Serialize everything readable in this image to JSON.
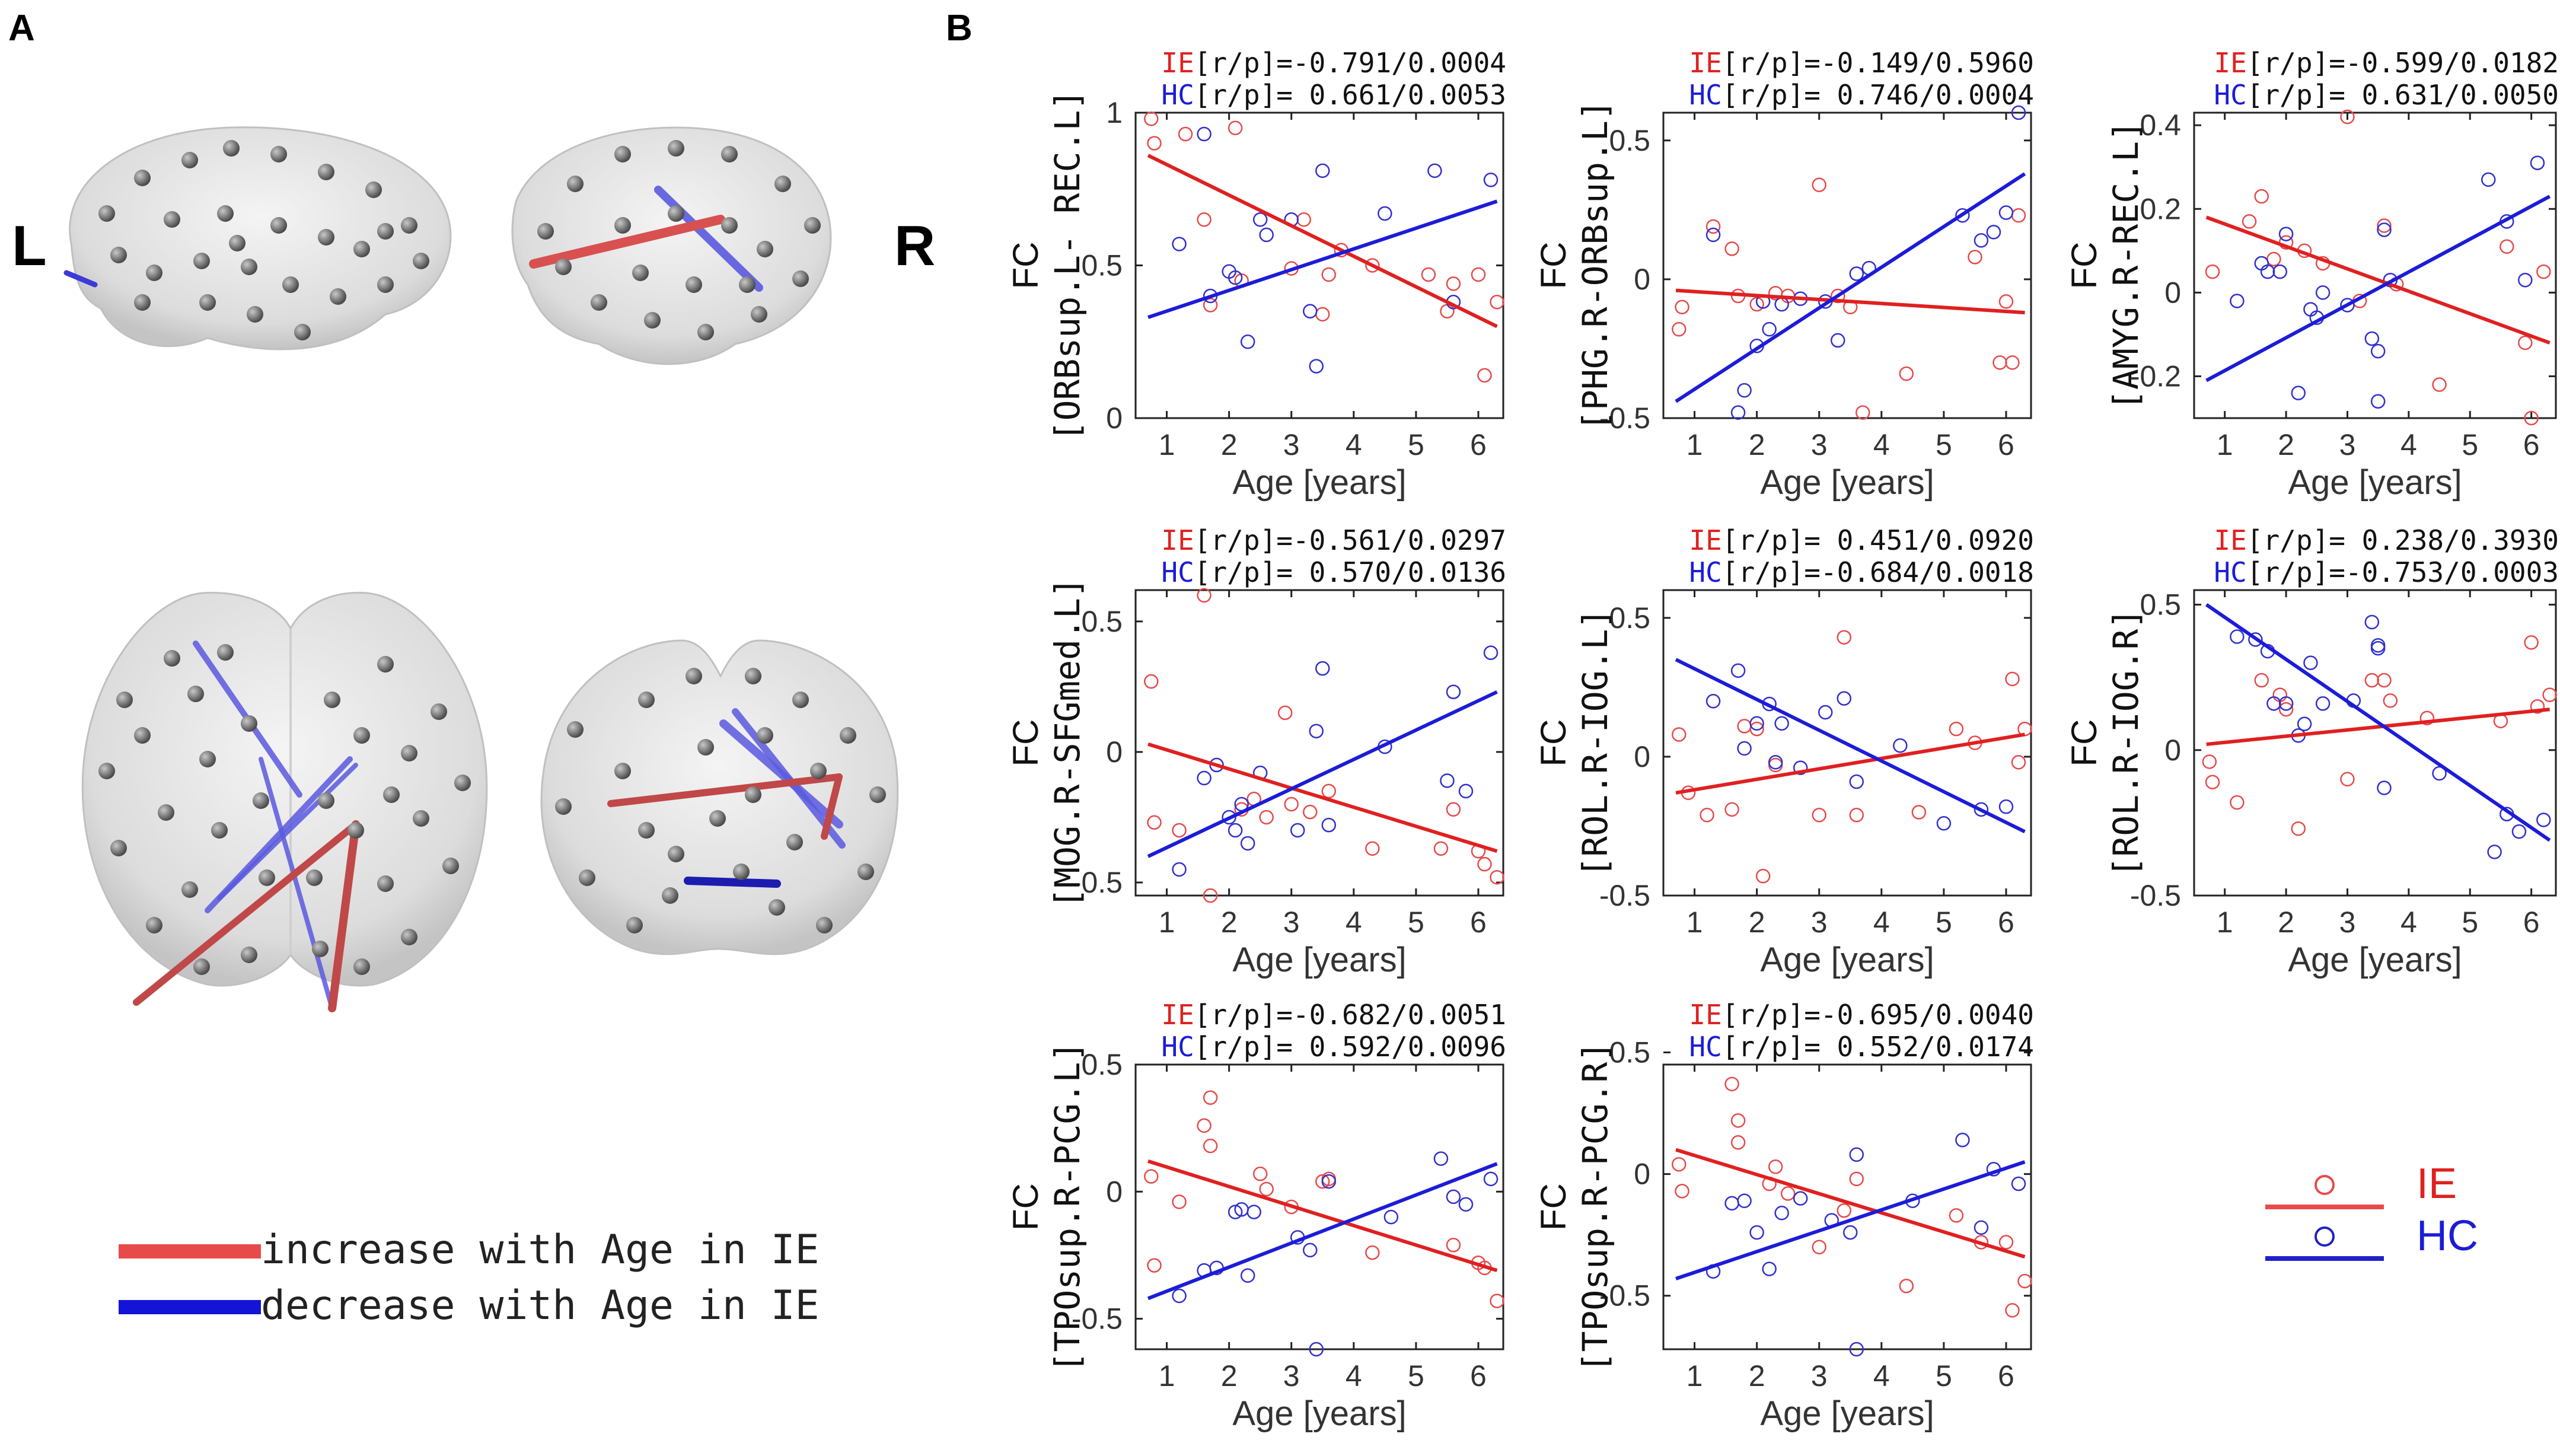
{
  "figure": {
    "panel_a_label": "A",
    "panel_b_label": "B",
    "hemi_left_label": "L",
    "hemi_right_label": "R",
    "colors": {
      "ie": "#e02020",
      "hc": "#1c1cd8",
      "ie_edge": "#d85050",
      "hc_edge": "#5a5ae0"
    }
  },
  "legend_a": {
    "increase_label": "increase with Age in IE",
    "decrease_label": "decrease with Age in IE"
  },
  "legend_b": {
    "ie_label": "IE",
    "hc_label": "HC"
  },
  "chart_data": [
    {
      "type": "scatter",
      "ylabel_top": "FC",
      "ylabel_bottom": "[ORBsup.L- REC.L]",
      "xlabel": "Age [years]",
      "xlim": [
        0.5,
        6.4
      ],
      "ylim": [
        0,
        1
      ],
      "xticks": [
        "1",
        "2",
        "3",
        "4",
        "5",
        "6"
      ],
      "yticks": [
        "0",
        "0.5",
        "1"
      ],
      "stat_prefix": "[r/p]=",
      "ie_stat": "-0.791/0.0004",
      "hc_stat": " 0.661/0.0053",
      "ie_fit": [
        [
          0.7,
          0.86
        ],
        [
          6.3,
          0.3
        ]
      ],
      "hc_fit": [
        [
          0.7,
          0.33
        ],
        [
          6.3,
          0.71
        ]
      ],
      "series": [
        {
          "name": "IE",
          "x": [
            0.75,
            0.8,
            1.3,
            1.6,
            1.7,
            2.2,
            2.1,
            3.0,
            3.2,
            3.5,
            3.6,
            3.8,
            4.3,
            5.2,
            5.5,
            5.6,
            6.0,
            6.1,
            6.3
          ],
          "y": [
            0.98,
            0.9,
            0.93,
            0.65,
            0.37,
            0.45,
            0.95,
            0.49,
            0.65,
            0.34,
            0.47,
            0.55,
            0.5,
            0.47,
            0.35,
            0.44,
            0.47,
            0.14,
            0.38
          ]
        },
        {
          "name": "HC",
          "x": [
            1.2,
            1.6,
            1.7,
            2.0,
            2.1,
            2.3,
            2.5,
            2.6,
            3.0,
            3.3,
            3.4,
            3.5,
            4.5,
            5.3,
            5.6,
            6.2
          ],
          "y": [
            0.57,
            0.93,
            0.4,
            0.48,
            0.46,
            0.25,
            0.65,
            0.6,
            0.65,
            0.35,
            0.17,
            0.81,
            0.67,
            0.81,
            0.38,
            0.78
          ]
        }
      ]
    },
    {
      "type": "scatter",
      "ylabel_top": "FC",
      "ylabel_bottom": "[PHG.R-ORBsup.L]",
      "xlabel": "Age [years]",
      "xlim": [
        0.5,
        6.4
      ],
      "ylim": [
        -0.5,
        0.6
      ],
      "xticks": [
        "1",
        "2",
        "3",
        "4",
        "5",
        "6"
      ],
      "yticks": [
        "-0.5",
        "0",
        "0.5"
      ],
      "stat_prefix": "[r/p]=",
      "ie_stat": "-0.149/0.5960",
      "hc_stat": " 0.746/0.0004",
      "ie_fit": [
        [
          0.7,
          -0.04
        ],
        [
          6.3,
          -0.12
        ]
      ],
      "hc_fit": [
        [
          0.7,
          -0.44
        ],
        [
          6.3,
          0.38
        ]
      ],
      "series": [
        {
          "name": "IE",
          "x": [
            0.75,
            0.8,
            1.3,
            1.6,
            1.7,
            2.0,
            2.1,
            2.3,
            2.5,
            3.0,
            3.3,
            3.5,
            3.7,
            4.4,
            5.5,
            5.9,
            6.0,
            6.1,
            6.2
          ],
          "y": [
            -0.18,
            -0.1,
            0.19,
            0.11,
            -0.06,
            -0.09,
            -0.08,
            -0.05,
            -0.06,
            0.34,
            -0.06,
            -0.1,
            -0.48,
            -0.34,
            0.08,
            -0.3,
            -0.08,
            -0.3,
            0.23
          ]
        },
        {
          "name": "HC",
          "x": [
            1.3,
            1.7,
            1.8,
            2.0,
            2.1,
            2.2,
            2.4,
            2.7,
            3.1,
            3.3,
            3.6,
            3.8,
            5.3,
            5.6,
            5.8,
            6.0,
            6.2
          ],
          "y": [
            0.16,
            -0.48,
            -0.4,
            -0.24,
            -0.08,
            -0.18,
            -0.09,
            -0.07,
            -0.08,
            -0.22,
            0.02,
            0.04,
            0.23,
            0.14,
            0.17,
            0.24,
            0.6
          ]
        }
      ]
    },
    {
      "type": "scatter",
      "ylabel_top": "FC",
      "ylabel_bottom": "[AMYG.R-REC.L]",
      "xlabel": "Age [years]",
      "xlim": [
        0.5,
        6.4
      ],
      "ylim": [
        -0.3,
        0.43
      ],
      "xticks": [
        "1",
        "2",
        "3",
        "4",
        "5",
        "6"
      ],
      "yticks": [
        "-0.2",
        "0",
        "0.2",
        "0.4"
      ],
      "stat_prefix": "[r/p]=",
      "ie_stat": "-0.599/0.0182",
      "hc_stat": " 0.631/0.0050",
      "ie_fit": [
        [
          0.7,
          0.18
        ],
        [
          6.3,
          -0.12
        ]
      ],
      "hc_fit": [
        [
          0.7,
          -0.21
        ],
        [
          6.3,
          0.23
        ]
      ],
      "series": [
        {
          "name": "IE",
          "x": [
            0.8,
            1.4,
            1.6,
            1.8,
            2.0,
            2.3,
            2.6,
            3.0,
            3.2,
            3.6,
            3.8,
            4.5,
            5.6,
            5.9,
            6.0,
            6.2
          ],
          "y": [
            0.05,
            0.17,
            0.23,
            0.08,
            0.12,
            0.1,
            0.07,
            0.42,
            -0.02,
            0.16,
            0.02,
            -0.22,
            0.11,
            -0.12,
            -0.3,
            0.05
          ]
        },
        {
          "name": "HC",
          "x": [
            1.2,
            1.6,
            1.7,
            1.9,
            2.0,
            2.2,
            2.4,
            2.5,
            2.6,
            3.0,
            3.4,
            3.5,
            3.5,
            3.6,
            3.7,
            5.3,
            5.6,
            5.9,
            6.1
          ],
          "y": [
            -0.02,
            0.07,
            0.05,
            0.05,
            0.14,
            -0.24,
            -0.04,
            -0.06,
            0.0,
            -0.03,
            -0.11,
            -0.14,
            -0.26,
            0.15,
            0.03,
            0.27,
            0.17,
            0.03,
            0.31
          ]
        }
      ]
    },
    {
      "type": "scatter",
      "ylabel_top": "FC",
      "ylabel_bottom": "[MOG.R-SFGmed.L]",
      "xlabel": "Age [years]",
      "xlim": [
        0.5,
        6.4
      ],
      "ylim": [
        -0.55,
        0.62
      ],
      "xticks": [
        "1",
        "2",
        "3",
        "4",
        "5",
        "6"
      ],
      "yticks": [
        "-0.5",
        "0",
        "0.5"
      ],
      "stat_prefix": "[r/p]=",
      "ie_stat": "-0.561/0.0297",
      "hc_stat": " 0.570/0.0136",
      "ie_fit": [
        [
          0.7,
          0.03
        ],
        [
          6.3,
          -0.38
        ]
      ],
      "hc_fit": [
        [
          0.7,
          -0.4
        ],
        [
          6.3,
          0.23
        ]
      ],
      "series": [
        {
          "name": "IE",
          "x": [
            0.75,
            0.8,
            1.2,
            1.6,
            1.7,
            2.2,
            2.4,
            2.6,
            2.9,
            3.0,
            3.3,
            3.6,
            4.3,
            5.4,
            5.6,
            6.0,
            6.1,
            6.3
          ],
          "y": [
            0.27,
            -0.27,
            -0.3,
            0.6,
            -0.55,
            -0.22,
            -0.18,
            -0.25,
            0.15,
            -0.2,
            -0.23,
            -0.15,
            -0.37,
            -0.37,
            -0.22,
            -0.38,
            -0.43,
            -0.48
          ]
        },
        {
          "name": "HC",
          "x": [
            1.2,
            1.6,
            1.8,
            2.0,
            2.1,
            2.2,
            2.3,
            2.5,
            3.1,
            3.4,
            3.5,
            3.6,
            4.5,
            5.5,
            5.6,
            5.8,
            6.2
          ],
          "y": [
            -0.45,
            -0.1,
            -0.05,
            -0.25,
            -0.3,
            -0.2,
            -0.35,
            -0.08,
            -0.3,
            0.08,
            0.32,
            -0.28,
            0.02,
            -0.11,
            0.23,
            -0.15,
            0.38
          ]
        }
      ]
    },
    {
      "type": "scatter",
      "ylabel_top": "FC",
      "ylabel_bottom": "[ROL.R-IOG.L]",
      "xlabel": "Age [years]",
      "xlim": [
        0.5,
        6.4
      ],
      "ylim": [
        -0.5,
        0.6
      ],
      "xticks": [
        "1",
        "2",
        "3",
        "4",
        "5",
        "6"
      ],
      "yticks": [
        "-0.5",
        "0",
        "0.5"
      ],
      "stat_prefix": "[r/p]=",
      "ie_stat": " 0.451/0.0920",
      "hc_stat": "-0.684/0.0018",
      "ie_fit": [
        [
          0.7,
          -0.13
        ],
        [
          6.3,
          0.08
        ]
      ],
      "hc_fit": [
        [
          0.7,
          0.35
        ],
        [
          6.3,
          -0.27
        ]
      ],
      "series": [
        {
          "name": "IE",
          "x": [
            0.75,
            0.9,
            1.2,
            1.6,
            1.8,
            2.0,
            2.1,
            2.3,
            3.0,
            3.4,
            3.6,
            4.6,
            5.2,
            5.5,
            6.1,
            6.2,
            6.3
          ],
          "y": [
            0.08,
            -0.13,
            -0.21,
            -0.19,
            0.11,
            0.1,
            -0.43,
            -0.03,
            -0.21,
            0.43,
            -0.21,
            -0.2,
            0.1,
            0.05,
            0.28,
            -0.02,
            0.1
          ]
        },
        {
          "name": "HC",
          "x": [
            1.3,
            1.7,
            1.8,
            2.0,
            2.2,
            2.3,
            2.4,
            2.7,
            3.1,
            3.4,
            3.6,
            4.3,
            5.0,
            5.6,
            6.0
          ],
          "y": [
            0.2,
            0.31,
            0.03,
            0.12,
            0.19,
            -0.02,
            0.12,
            -0.04,
            0.16,
            0.21,
            -0.09,
            0.04,
            -0.24,
            -0.19,
            -0.18
          ]
        }
      ]
    },
    {
      "type": "scatter",
      "ylabel_top": "FC",
      "ylabel_bottom": "[ROL.R-IOG.R]",
      "xlabel": "Age [years]",
      "xlim": [
        0.5,
        6.4
      ],
      "ylim": [
        -0.5,
        0.55
      ],
      "xticks": [
        "1",
        "2",
        "3",
        "4",
        "5",
        "6"
      ],
      "yticks": [
        "-0.5",
        "0",
        "0.5"
      ],
      "stat_prefix": "[r/p]=",
      "ie_stat": " 0.238/0.3930",
      "hc_stat": "-0.753/0.0003",
      "ie_fit": [
        [
          0.7,
          0.02
        ],
        [
          6.3,
          0.14
        ]
      ],
      "hc_fit": [
        [
          0.7,
          0.5
        ],
        [
          6.3,
          -0.31
        ]
      ],
      "series": [
        {
          "name": "IE",
          "x": [
            0.75,
            0.8,
            1.2,
            1.6,
            1.9,
            2.0,
            2.2,
            3.0,
            3.4,
            3.6,
            3.7,
            4.3,
            5.5,
            6.0,
            6.1,
            6.3
          ],
          "y": [
            -0.04,
            -0.11,
            -0.18,
            0.24,
            0.19,
            0.14,
            -0.27,
            -0.1,
            0.24,
            0.24,
            0.17,
            0.11,
            0.1,
            0.37,
            0.15,
            0.19
          ]
        },
        {
          "name": "HC",
          "x": [
            1.2,
            1.5,
            1.7,
            1.8,
            2.0,
            2.2,
            2.3,
            2.4,
            2.6,
            3.1,
            3.4,
            3.5,
            3.5,
            3.6,
            4.5,
            5.4,
            5.6,
            5.8,
            6.2
          ],
          "y": [
            0.39,
            0.38,
            0.34,
            0.16,
            0.16,
            0.05,
            0.09,
            0.3,
            0.16,
            0.17,
            0.44,
            0.36,
            0.35,
            -0.13,
            -0.08,
            -0.35,
            -0.22,
            -0.28,
            -0.24
          ]
        }
      ]
    },
    {
      "type": "scatter",
      "ylabel_top": "FC",
      "ylabel_bottom": "[TPOsup.R-PCG.L]",
      "xlabel": "Age [years]",
      "xlim": [
        0.5,
        6.4
      ],
      "ylim": [
        -0.62,
        0.5
      ],
      "xticks": [
        "1",
        "2",
        "3",
        "4",
        "5",
        "6"
      ],
      "yticks": [
        "-0.5",
        "0",
        "0.5"
      ],
      "stat_prefix": "[r/p]=",
      "ie_stat": "-0.682/0.0051",
      "hc_stat": " 0.592/0.0096",
      "ie_fit": [
        [
          0.7,
          0.12
        ],
        [
          6.3,
          -0.31
        ]
      ],
      "hc_fit": [
        [
          0.7,
          -0.42
        ],
        [
          6.3,
          0.11
        ]
      ],
      "series": [
        {
          "name": "IE",
          "x": [
            0.75,
            0.8,
            1.2,
            1.6,
            1.7,
            1.7,
            2.5,
            2.6,
            3.0,
            3.5,
            3.6,
            4.3,
            5.6,
            6.0,
            6.1,
            6.3
          ],
          "y": [
            0.06,
            -0.29,
            -0.04,
            0.26,
            0.37,
            0.18,
            0.07,
            0.01,
            -0.06,
            0.04,
            0.05,
            -0.24,
            -0.21,
            -0.28,
            -0.3,
            -0.43
          ]
        },
        {
          "name": "HC",
          "x": [
            1.2,
            1.6,
            1.8,
            2.1,
            2.2,
            2.3,
            2.4,
            3.1,
            3.3,
            3.4,
            3.6,
            4.6,
            5.4,
            5.6,
            5.8,
            6.2
          ],
          "y": [
            -0.41,
            -0.31,
            -0.3,
            -0.08,
            -0.07,
            -0.33,
            -0.08,
            -0.18,
            -0.23,
            -0.62,
            0.04,
            -0.1,
            0.13,
            -0.02,
            -0.05,
            0.05
          ]
        }
      ]
    },
    {
      "type": "scatter",
      "ylabel_top": "FC",
      "ylabel_bottom": "[TPOsup.R-PCG.R]",
      "xlabel": "Age [years]",
      "xlim": [
        0.5,
        6.4
      ],
      "ylim": [
        -0.72,
        0.45
      ],
      "xticks": [
        "1",
        "2",
        "3",
        "4",
        "5",
        "6"
      ],
      "yticks": [
        "-0.5",
        "0",
        "0.5"
      ],
      "stat_prefix": "[r/p]=",
      "ie_stat": "-0.695/0.0040",
      "hc_stat": " 0.552/0.0174",
      "ie_fit": [
        [
          0.7,
          0.1
        ],
        [
          6.3,
          -0.34
        ]
      ],
      "hc_fit": [
        [
          0.7,
          -0.43
        ],
        [
          6.3,
          0.05
        ]
      ],
      "series": [
        {
          "name": "IE",
          "x": [
            0.75,
            0.8,
            1.6,
            1.7,
            1.7,
            2.2,
            2.3,
            2.5,
            3.0,
            3.4,
            3.6,
            4.4,
            5.2,
            5.6,
            6.0,
            6.1,
            6.3
          ],
          "y": [
            0.04,
            -0.07,
            0.37,
            0.22,
            0.13,
            -0.04,
            0.03,
            -0.08,
            -0.3,
            -0.15,
            -0.02,
            -0.46,
            -0.17,
            -0.28,
            -0.28,
            -0.56,
            -0.44
          ]
        },
        {
          "name": "HC",
          "x": [
            1.3,
            1.6,
            1.8,
            2.0,
            2.2,
            2.4,
            2.7,
            3.2,
            3.5,
            3.6,
            3.6,
            4.5,
            5.3,
            5.6,
            5.8,
            6.2
          ],
          "y": [
            -0.4,
            -0.12,
            -0.11,
            -0.24,
            -0.39,
            -0.16,
            -0.1,
            -0.19,
            -0.24,
            -0.72,
            0.08,
            -0.11,
            0.14,
            -0.22,
            0.02,
            -0.04
          ]
        }
      ]
    }
  ]
}
